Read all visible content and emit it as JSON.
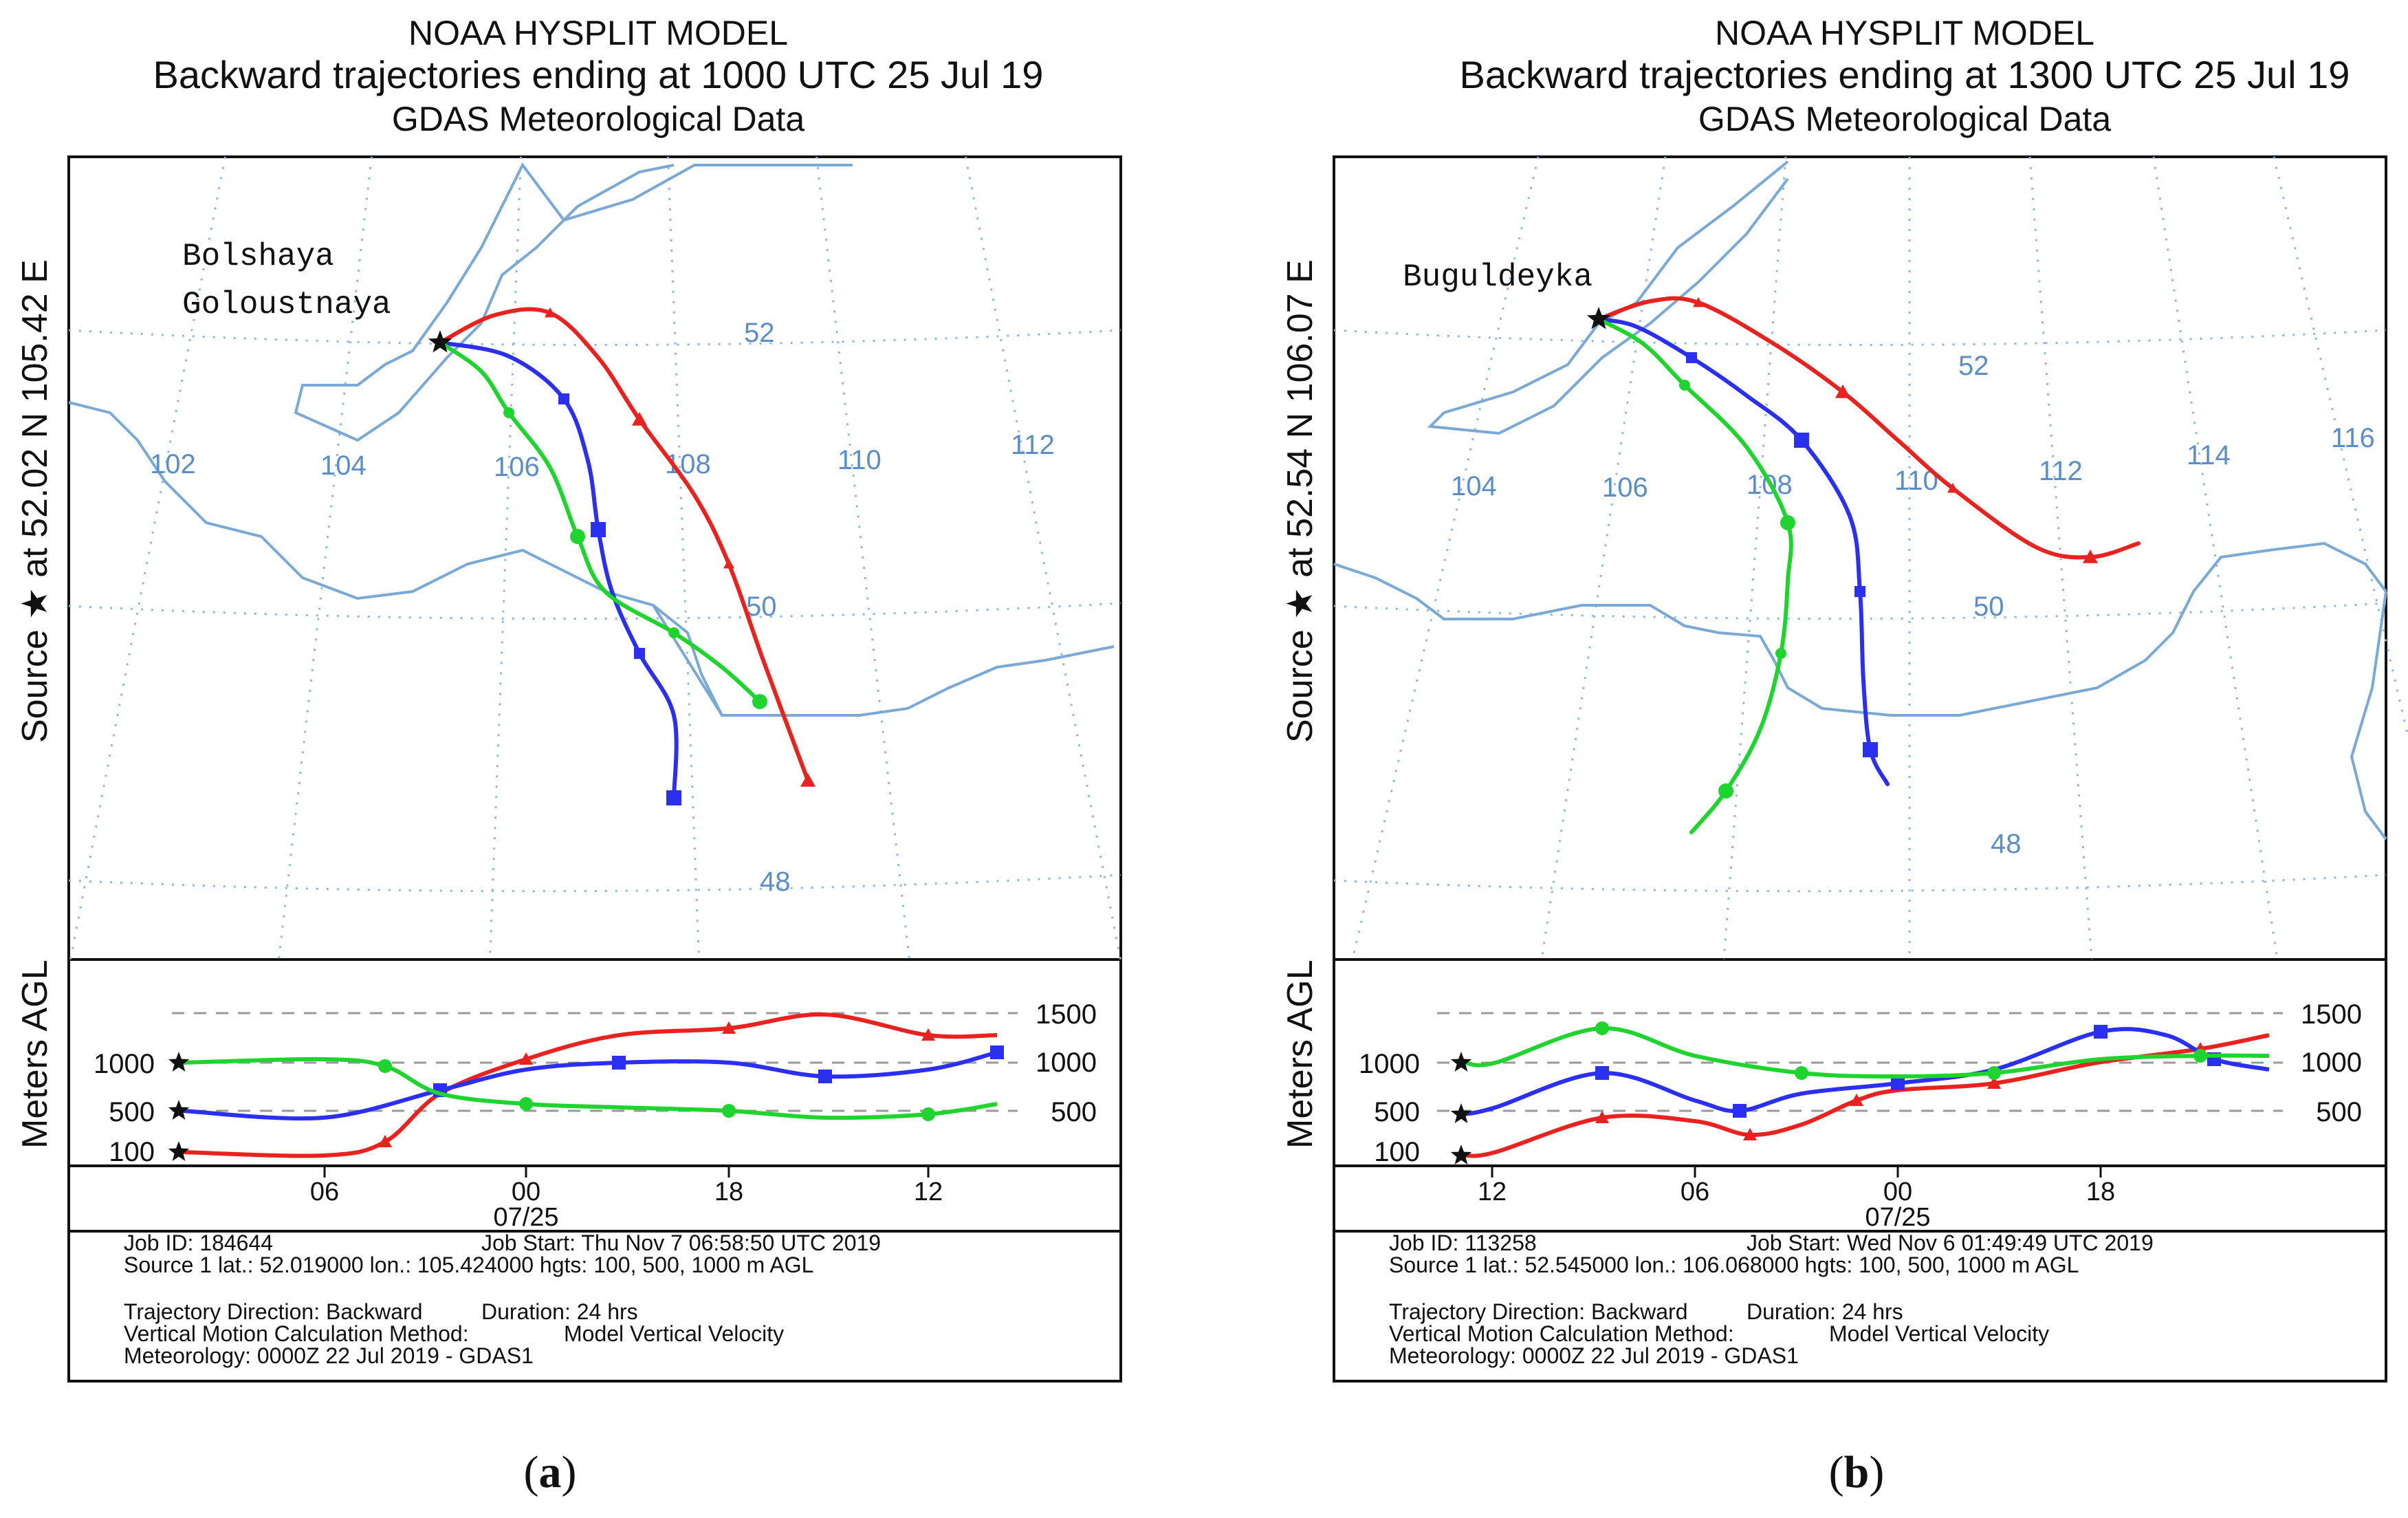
{
  "chart_data": [
    {
      "type": "line",
      "panel_caption": [
        "(",
        "a",
        ")"
      ],
      "title": "NOAA HYSPLIT MODEL",
      "subtitle": "Backward trajectories ending at 1000 UTC 25 Jul 19",
      "data_source": "GDAS Meteorological Data",
      "side_label": "Source ★ at    52.02 N    105.42 E",
      "site_name": [
        "Bolshaya",
        "Goloustnaya"
      ],
      "lon_labels": [
        "102",
        "104",
        "106",
        "108",
        "110",
        "112"
      ],
      "lat_labels": [
        "52",
        "50",
        "48"
      ],
      "lon_range": [
        101.5,
        113.5
      ],
      "lat_range": [
        47.5,
        53.5
      ],
      "ylabel": "Meters AGL",
      "height_ticks_left": [
        "1000",
        "500",
        "100"
      ],
      "height_ticks_right": [
        "1500",
        "1000",
        "500"
      ],
      "time_ticks": [
        "06",
        "00",
        "18",
        "12"
      ],
      "date_label": "07/25",
      "series": [
        {
          "color": "#e8231f",
          "start_height_m": 100,
          "lon": [
            105.42,
            105.9,
            106.5,
            107.4,
            108.4,
            109.3,
            110.1
          ],
          "lat": [
            52.02,
            52.18,
            52.12,
            51.55,
            50.9,
            49.85,
            48.95
          ],
          "heights": [
            100,
            90,
            1070,
            1350,
            1300,
            1450,
            1250,
            1240
          ]
        },
        {
          "color": "#2a2ff0",
          "start_height_m": 500,
          "lon": [
            105.42,
            106.2,
            107.0,
            107.4,
            107.6,
            108.4,
            108.8
          ],
          "lat": [
            52.02,
            51.95,
            51.2,
            50.85,
            50.35,
            49.55,
            48.95
          ],
          "heights": [
            500,
            420,
            950,
            1000,
            1020,
            800,
            1000,
            1150
          ]
        },
        {
          "color": "#1fd42e",
          "start_height_m": 1000,
          "lon": [
            105.42,
            106.1,
            106.8,
            107.5,
            108.7,
            109.5
          ],
          "lat": [
            52.02,
            51.6,
            50.95,
            50.45,
            49.9,
            49.55
          ],
          "heights": [
            1000,
            1030,
            630,
            560,
            530,
            480,
            520,
            610
          ]
        }
      ],
      "info": {
        "job_id": "Job ID: 184644",
        "job_start": "Job Start: Thu Nov  7 06:58:50 UTC 2019",
        "source": "Source 1 lat.: 52.019000  lon.: 105.424000  hgts: 100, 500, 1000 m AGL",
        "direction": "Trajectory Direction: Backward",
        "duration": "Duration: 24 hrs",
        "vertical_method": "Vertical Motion Calculation Method:",
        "vertical_value": "Model Vertical Velocity",
        "meteorology": "Meteorology: 0000Z 22 Jul 2019 - GDAS1"
      }
    },
    {
      "type": "line",
      "panel_caption": [
        "(",
        "b",
        ")"
      ],
      "title": "NOAA HYSPLIT MODEL",
      "subtitle": "Backward trajectories ending at 1300 UTC 25 Jul 19",
      "data_source": "GDAS Meteorological Data",
      "side_label": "Source ★ at    52.54 N    106.07 E",
      "site_name": [
        "Buguldeyka"
      ],
      "lon_labels": [
        "104",
        "106",
        "108",
        "110",
        "112",
        "114",
        "116"
      ],
      "lat_labels": [
        "52",
        "50",
        "48"
      ],
      "lon_range": [
        103.5,
        117.0
      ],
      "lat_range": [
        47.5,
        53.5
      ],
      "ylabel": "Meters AGL",
      "height_ticks_left": [
        "1000",
        "500",
        "100"
      ],
      "height_ticks_right": [
        "1500",
        "1000",
        "500"
      ],
      "time_ticks": [
        "12",
        "06",
        "00",
        "18"
      ],
      "date_label": "07/25",
      "series": [
        {
          "color": "#e8231f",
          "start_height_m": 100,
          "lon": [
            106.07,
            107.1,
            108.6,
            110.0,
            111.6,
            113.0,
            114.0
          ],
          "lat": [
            52.54,
            52.7,
            52.5,
            51.95,
            51.35,
            51.15,
            51.25
          ],
          "heights": [
            100,
            350,
            500,
            280,
            800,
            1000,
            1200,
            1300
          ]
        },
        {
          "color": "#2a2ff0",
          "start_height_m": 500,
          "lon": [
            106.07,
            107.3,
            108.4,
            109.6,
            110.0,
            110.4
          ],
          "lat": [
            52.54,
            52.5,
            52.1,
            51.3,
            50.2,
            49.3
          ],
          "heights": [
            500,
            950,
            650,
            600,
            900,
            1050,
            1450,
            1050
          ]
        },
        {
          "color": "#1fd42e",
          "start_height_m": 1000,
          "lon": [
            106.07,
            107.0,
            108.1,
            108.9,
            108.6,
            107.9
          ],
          "lat": [
            52.54,
            52.2,
            51.6,
            50.6,
            49.6,
            48.9
          ],
          "heights": [
            1000,
            1400,
            1000,
            920,
            900,
            980,
            1050,
            1080
          ]
        }
      ],
      "info": {
        "job_id": "Job ID: 113258",
        "job_start": "Job Start: Wed Nov  6 01:49:49 UTC 2019",
        "source": "Source 1 lat.: 52.545000  lon.: 106.068000  hgts: 100, 500, 1000 m AGL",
        "direction": "Trajectory Direction: Backward",
        "duration": "Duration: 24 hrs",
        "vertical_method": "Vertical Motion Calculation Method:",
        "vertical_value": "Model Vertical Velocity",
        "meteorology": "Meteorology: 0000Z 22 Jul 2019 - GDAS1"
      }
    }
  ],
  "colors": {
    "map_lines": "#7aa9d6",
    "grid_dots": "#8db8e0",
    "frame": "#111111",
    "dashed": "#9a9a9a"
  }
}
